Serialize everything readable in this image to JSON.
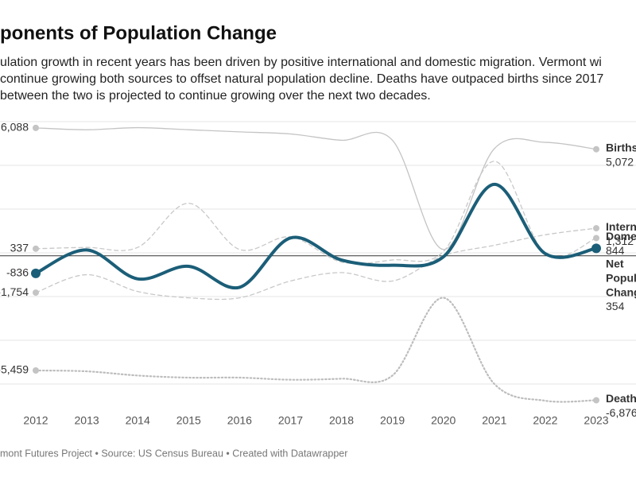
{
  "chart_data": {
    "type": "line",
    "title": "ponents of Population Change",
    "subtitle": [
      "ulation growth in recent years has been driven by positive international and domestic migration. Vermont wi",
      "continue growing both sources to offset natural population decline. Deaths have outpaced births since 2017",
      "between the two is projected to continue growing over the next two decades."
    ],
    "source": "mont Futures Project • Source: US Census Bureau • Created with Datawrapper",
    "categories": [
      "2012",
      "2013",
      "2014",
      "2015",
      "2016",
      "2017",
      "2018",
      "2019",
      "2020",
      "2021",
      "2022",
      "2023"
    ],
    "ylim": [
      -7200,
      6500
    ],
    "series": [
      {
        "name": "Births",
        "color": "#c4c4c4",
        "style": "solid",
        "values": [
          6088,
          6000,
          6100,
          6000,
          5900,
          5800,
          5500,
          5500,
          300,
          5100,
          5400,
          5072
        ],
        "value_labels": [
          "6,088",
          null,
          null,
          null,
          null,
          null,
          null,
          null,
          null,
          null,
          null,
          "5,072"
        ]
      },
      {
        "name": "Intern",
        "color": "#c8c8c8",
        "style": "dashed",
        "values": [
          -1754,
          -900,
          -1700,
          -2000,
          -2000,
          -1200,
          -800,
          -1200,
          0,
          500,
          1000,
          1312
        ],
        "value_labels": [
          "-1,754",
          null,
          null,
          null,
          null,
          null,
          null,
          null,
          null,
          null,
          null,
          "1,312"
        ]
      },
      {
        "name": "Dome",
        "color": "#c8c8c8",
        "style": "dashed",
        "values": [
          337,
          400,
          400,
          2500,
          300,
          900,
          -300,
          -200,
          200,
          4500,
          100,
          844
        ],
        "value_labels": [
          "337",
          null,
          null,
          null,
          null,
          null,
          null,
          null,
          null,
          null,
          null,
          "844"
        ]
      },
      {
        "name": "Death",
        "color": "#bdbdbd",
        "style": "dotted",
        "values": [
          -5459,
          -5500,
          -5700,
          -5800,
          -5800,
          -5900,
          -5850,
          -5700,
          -2000,
          -6100,
          -6900,
          -6876
        ],
        "value_labels": [
          "-5,459",
          null,
          null,
          null,
          null,
          null,
          null,
          null,
          null,
          null,
          null,
          "-6,876"
        ]
      },
      {
        "name": "Net Popul Chang",
        "color": "#1b5e78",
        "style": "thick",
        "values": [
          -836,
          280,
          -1100,
          -500,
          -1500,
          850,
          -200,
          -450,
          -50,
          3400,
          100,
          354
        ],
        "value_labels": [
          "-836",
          null,
          null,
          null,
          null,
          null,
          null,
          null,
          null,
          null,
          null,
          "354"
        ]
      }
    ]
  }
}
